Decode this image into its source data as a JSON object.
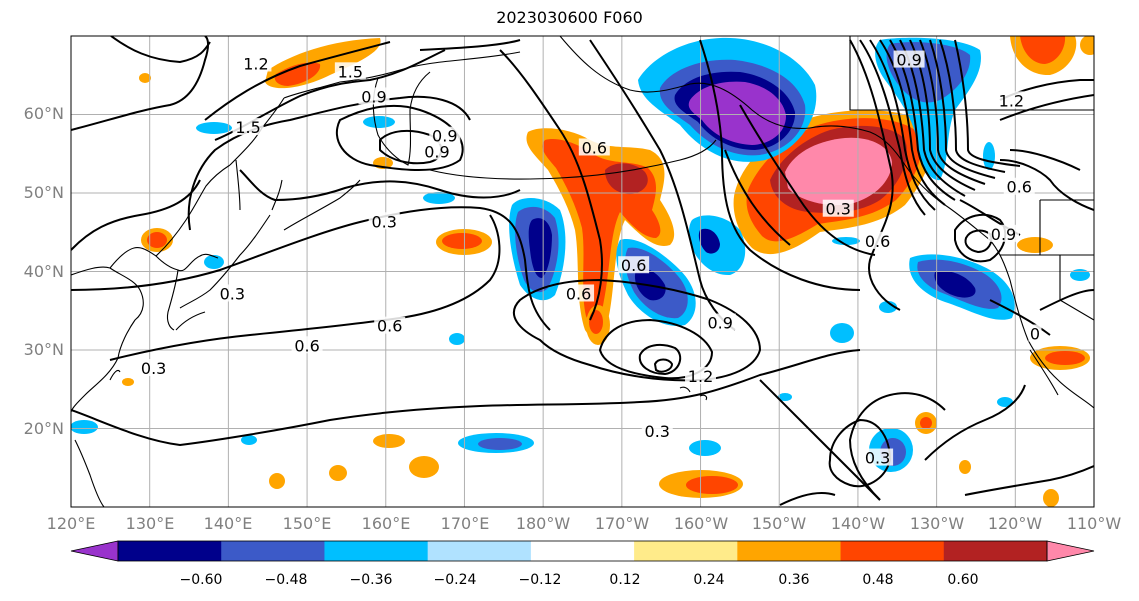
{
  "title": "2023030600 F060",
  "map": {
    "projection": "cylindrical",
    "lon_range": [
      120,
      250
    ],
    "lat_range": [
      10,
      70
    ],
    "lat_ticks": [
      {
        "value": 20,
        "label": "20°N"
      },
      {
        "value": 30,
        "label": "30°N"
      },
      {
        "value": 40,
        "label": "40°N"
      },
      {
        "value": 50,
        "label": "50°N"
      },
      {
        "value": 60,
        "label": "60°N"
      }
    ],
    "lon_ticks": [
      {
        "value": 120,
        "label": "120°E"
      },
      {
        "value": 130,
        "label": "130°E"
      },
      {
        "value": 140,
        "label": "140°E"
      },
      {
        "value": 150,
        "label": "150°E"
      },
      {
        "value": 160,
        "label": "160°E"
      },
      {
        "value": 170,
        "label": "170°E"
      },
      {
        "value": 180,
        "label": "180°W"
      },
      {
        "value": 190,
        "label": "170°W"
      },
      {
        "value": 200,
        "label": "160°W"
      },
      {
        "value": 210,
        "label": "150°W"
      },
      {
        "value": 220,
        "label": "140°W"
      },
      {
        "value": 230,
        "label": "130°W"
      },
      {
        "value": 240,
        "label": "120°W"
      },
      {
        "value": 250,
        "label": "110°W"
      }
    ],
    "grid": true,
    "contour_labels": [
      {
        "text": "1.2",
        "lon": 143.5,
        "lat": 66.5
      },
      {
        "text": "1.5",
        "lon": 155.5,
        "lat": 65.5
      },
      {
        "text": "0.9",
        "lon": 158.5,
        "lat": 62.3
      },
      {
        "text": "1.5",
        "lon": 142.5,
        "lat": 58.4
      },
      {
        "text": "0.9",
        "lon": 167.5,
        "lat": 57.3
      },
      {
        "text": "0.9",
        "lon": 166.5,
        "lat": 55.3
      },
      {
        "text": "0.6",
        "lon": 186.5,
        "lat": 55.8
      },
      {
        "text": "0.3",
        "lon": 159.8,
        "lat": 46.4
      },
      {
        "text": "0.3",
        "lon": 140.5,
        "lat": 37.2
      },
      {
        "text": "0.6",
        "lon": 160.5,
        "lat": 33.1
      },
      {
        "text": "0.6",
        "lon": 150.0,
        "lat": 30.6
      },
      {
        "text": "0.3",
        "lon": 130.5,
        "lat": 27.7
      },
      {
        "text": "0.6",
        "lon": 191.5,
        "lat": 40.8
      },
      {
        "text": "0.6",
        "lon": 184.5,
        "lat": 37.2
      },
      {
        "text": "0.9",
        "lon": 202.5,
        "lat": 33.5
      },
      {
        "text": "1.2",
        "lon": 200.0,
        "lat": 26.7
      },
      {
        "text": "0.3",
        "lon": 194.5,
        "lat": 19.7
      },
      {
        "text": "0.3",
        "lon": 217.5,
        "lat": 48.0
      },
      {
        "text": "0.6",
        "lon": 222.5,
        "lat": 43.9
      },
      {
        "text": "0.9",
        "lon": 238.5,
        "lat": 44.8
      },
      {
        "text": "0.6",
        "lon": 240.5,
        "lat": 50.8
      },
      {
        "text": "1.2",
        "lon": 239.5,
        "lat": 61.8
      },
      {
        "text": "0.3",
        "lon": 222.5,
        "lat": 16.3
      },
      {
        "text": "0.9",
        "lon": 226.5,
        "lat": 67.0
      },
      {
        "text": "0",
        "lon": 242.5,
        "lat": 32.1
      }
    ],
    "shaded_regions": [
      {
        "color": "#ff88aa",
        "value_range": [
          0.6,
          99
        ],
        "lon": [
          214,
          222
        ],
        "lat": [
          47,
          54
        ]
      },
      {
        "color": "#9933cc",
        "value_range": [
          -99,
          -0.6
        ],
        "lon": [
          201,
          209
        ],
        "lat": [
          52,
          61
        ]
      }
    ],
    "coastline_color": "#000000",
    "contour_color": "#000000"
  },
  "colorbar": {
    "colors": [
      "#9933cc",
      "#00008b",
      "#3c5ac8",
      "#00bfff",
      "#b0e2ff",
      "#ffffff",
      "#ffeb8a",
      "#ffa500",
      "#ff4500",
      "#b22222",
      "#ff88aa"
    ],
    "ticks": [
      "−0.60",
      "−0.48",
      "−0.36",
      "−0.24",
      "−0.12",
      "0.12",
      "0.24",
      "0.36",
      "0.48",
      "0.60"
    ],
    "extend": "both"
  }
}
